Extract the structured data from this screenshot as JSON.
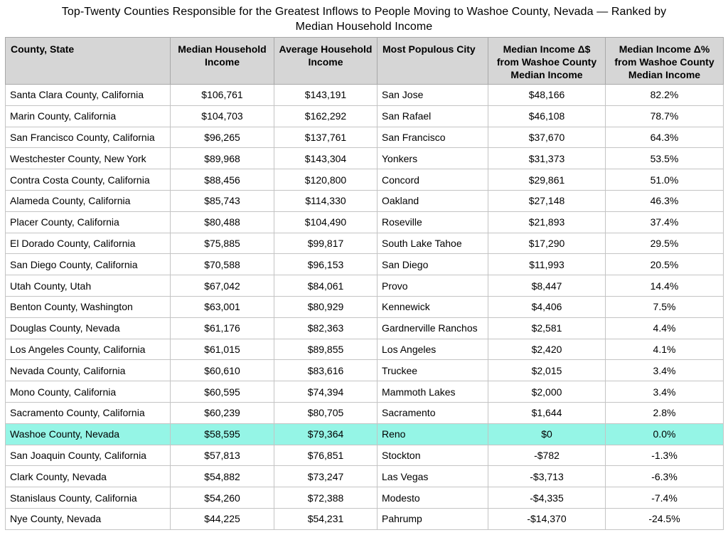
{
  "title_line1": "Top-Twenty Counties Responsible for the Greatest Inflows to People Moving to Washoe County, Nevada — Ranked by",
  "title_line2": "Median Household Income",
  "columns": [
    "County, State",
    "Median Household Income",
    "Average Household Income",
    "Most Populous City",
    "Median Income Δ$ from Washoe County Median Income",
    "Median Income Δ% from Washoe County Median Income"
  ],
  "highlight_color": "#95f5e6",
  "header_bg": "#d6d6d6",
  "rows": [
    {
      "county": "Santa Clara County, California",
      "median": "$106,761",
      "average": "$143,191",
      "city": "San Jose",
      "delta_dollar": "$48,166",
      "delta_pct": "82.2%"
    },
    {
      "county": "Marin County, California",
      "median": "$104,703",
      "average": "$162,292",
      "city": "San Rafael",
      "delta_dollar": "$46,108",
      "delta_pct": "78.7%"
    },
    {
      "county": "San Francisco County, California",
      "median": "$96,265",
      "average": "$137,761",
      "city": "San Francisco",
      "delta_dollar": "$37,670",
      "delta_pct": "64.3%"
    },
    {
      "county": "Westchester County, New York",
      "median": "$89,968",
      "average": "$143,304",
      "city": "Yonkers",
      "delta_dollar": "$31,373",
      "delta_pct": "53.5%"
    },
    {
      "county": "Contra Costa County, California",
      "median": "$88,456",
      "average": "$120,800",
      "city": "Concord",
      "delta_dollar": "$29,861",
      "delta_pct": "51.0%"
    },
    {
      "county": "Alameda County, California",
      "median": "$85,743",
      "average": "$114,330",
      "city": "Oakland",
      "delta_dollar": "$27,148",
      "delta_pct": "46.3%"
    },
    {
      "county": "Placer County, California",
      "median": "$80,488",
      "average": "$104,490",
      "city": "Roseville",
      "delta_dollar": "$21,893",
      "delta_pct": "37.4%"
    },
    {
      "county": "El Dorado County, California",
      "median": "$75,885",
      "average": "$99,817",
      "city": "South Lake Tahoe",
      "delta_dollar": "$17,290",
      "delta_pct": "29.5%"
    },
    {
      "county": "San Diego County, California",
      "median": "$70,588",
      "average": "$96,153",
      "city": "San Diego",
      "delta_dollar": "$11,993",
      "delta_pct": "20.5%"
    },
    {
      "county": "Utah County, Utah",
      "median": "$67,042",
      "average": "$84,061",
      "city": "Provo",
      "delta_dollar": "$8,447",
      "delta_pct": "14.4%"
    },
    {
      "county": "Benton County, Washington",
      "median": "$63,001",
      "average": "$80,929",
      "city": "Kennewick",
      "delta_dollar": "$4,406",
      "delta_pct": "7.5%"
    },
    {
      "county": "Douglas County, Nevada",
      "median": "$61,176",
      "average": "$82,363",
      "city": "Gardnerville Ranchos",
      "delta_dollar": "$2,581",
      "delta_pct": "4.4%"
    },
    {
      "county": "Los Angeles County, California",
      "median": "$61,015",
      "average": "$89,855",
      "city": "Los Angeles",
      "delta_dollar": "$2,420",
      "delta_pct": "4.1%"
    },
    {
      "county": "Nevada County, California",
      "median": "$60,610",
      "average": "$83,616",
      "city": "Truckee",
      "delta_dollar": "$2,015",
      "delta_pct": "3.4%"
    },
    {
      "county": "Mono County, California",
      "median": "$60,595",
      "average": "$74,394",
      "city": "Mammoth Lakes",
      "delta_dollar": "$2,000",
      "delta_pct": "3.4%"
    },
    {
      "county": "Sacramento County, California",
      "median": "$60,239",
      "average": "$80,705",
      "city": "Sacramento",
      "delta_dollar": "$1,644",
      "delta_pct": "2.8%"
    },
    {
      "county": "Washoe County, Nevada",
      "median": "$58,595",
      "average": "$79,364",
      "city": "Reno",
      "delta_dollar": "$0",
      "delta_pct": "0.0%"
    },
    {
      "county": "San Joaquin County, California",
      "median": "$57,813",
      "average": "$76,851",
      "city": "Stockton",
      "delta_dollar": "-$782",
      "delta_pct": "-1.3%"
    },
    {
      "county": "Clark County, Nevada",
      "median": "$54,882",
      "average": "$73,247",
      "city": "Las Vegas",
      "delta_dollar": "-$3,713",
      "delta_pct": "-6.3%"
    },
    {
      "county": "Stanislaus County, California",
      "median": "$54,260",
      "average": "$72,388",
      "city": "Modesto",
      "delta_dollar": "-$4,335",
      "delta_pct": "-7.4%"
    },
    {
      "county": "Nye County, Nevada",
      "median": "$44,225",
      "average": "$54,231",
      "city": "Pahrump",
      "delta_dollar": "-$14,370",
      "delta_pct": "-24.5%"
    }
  ]
}
